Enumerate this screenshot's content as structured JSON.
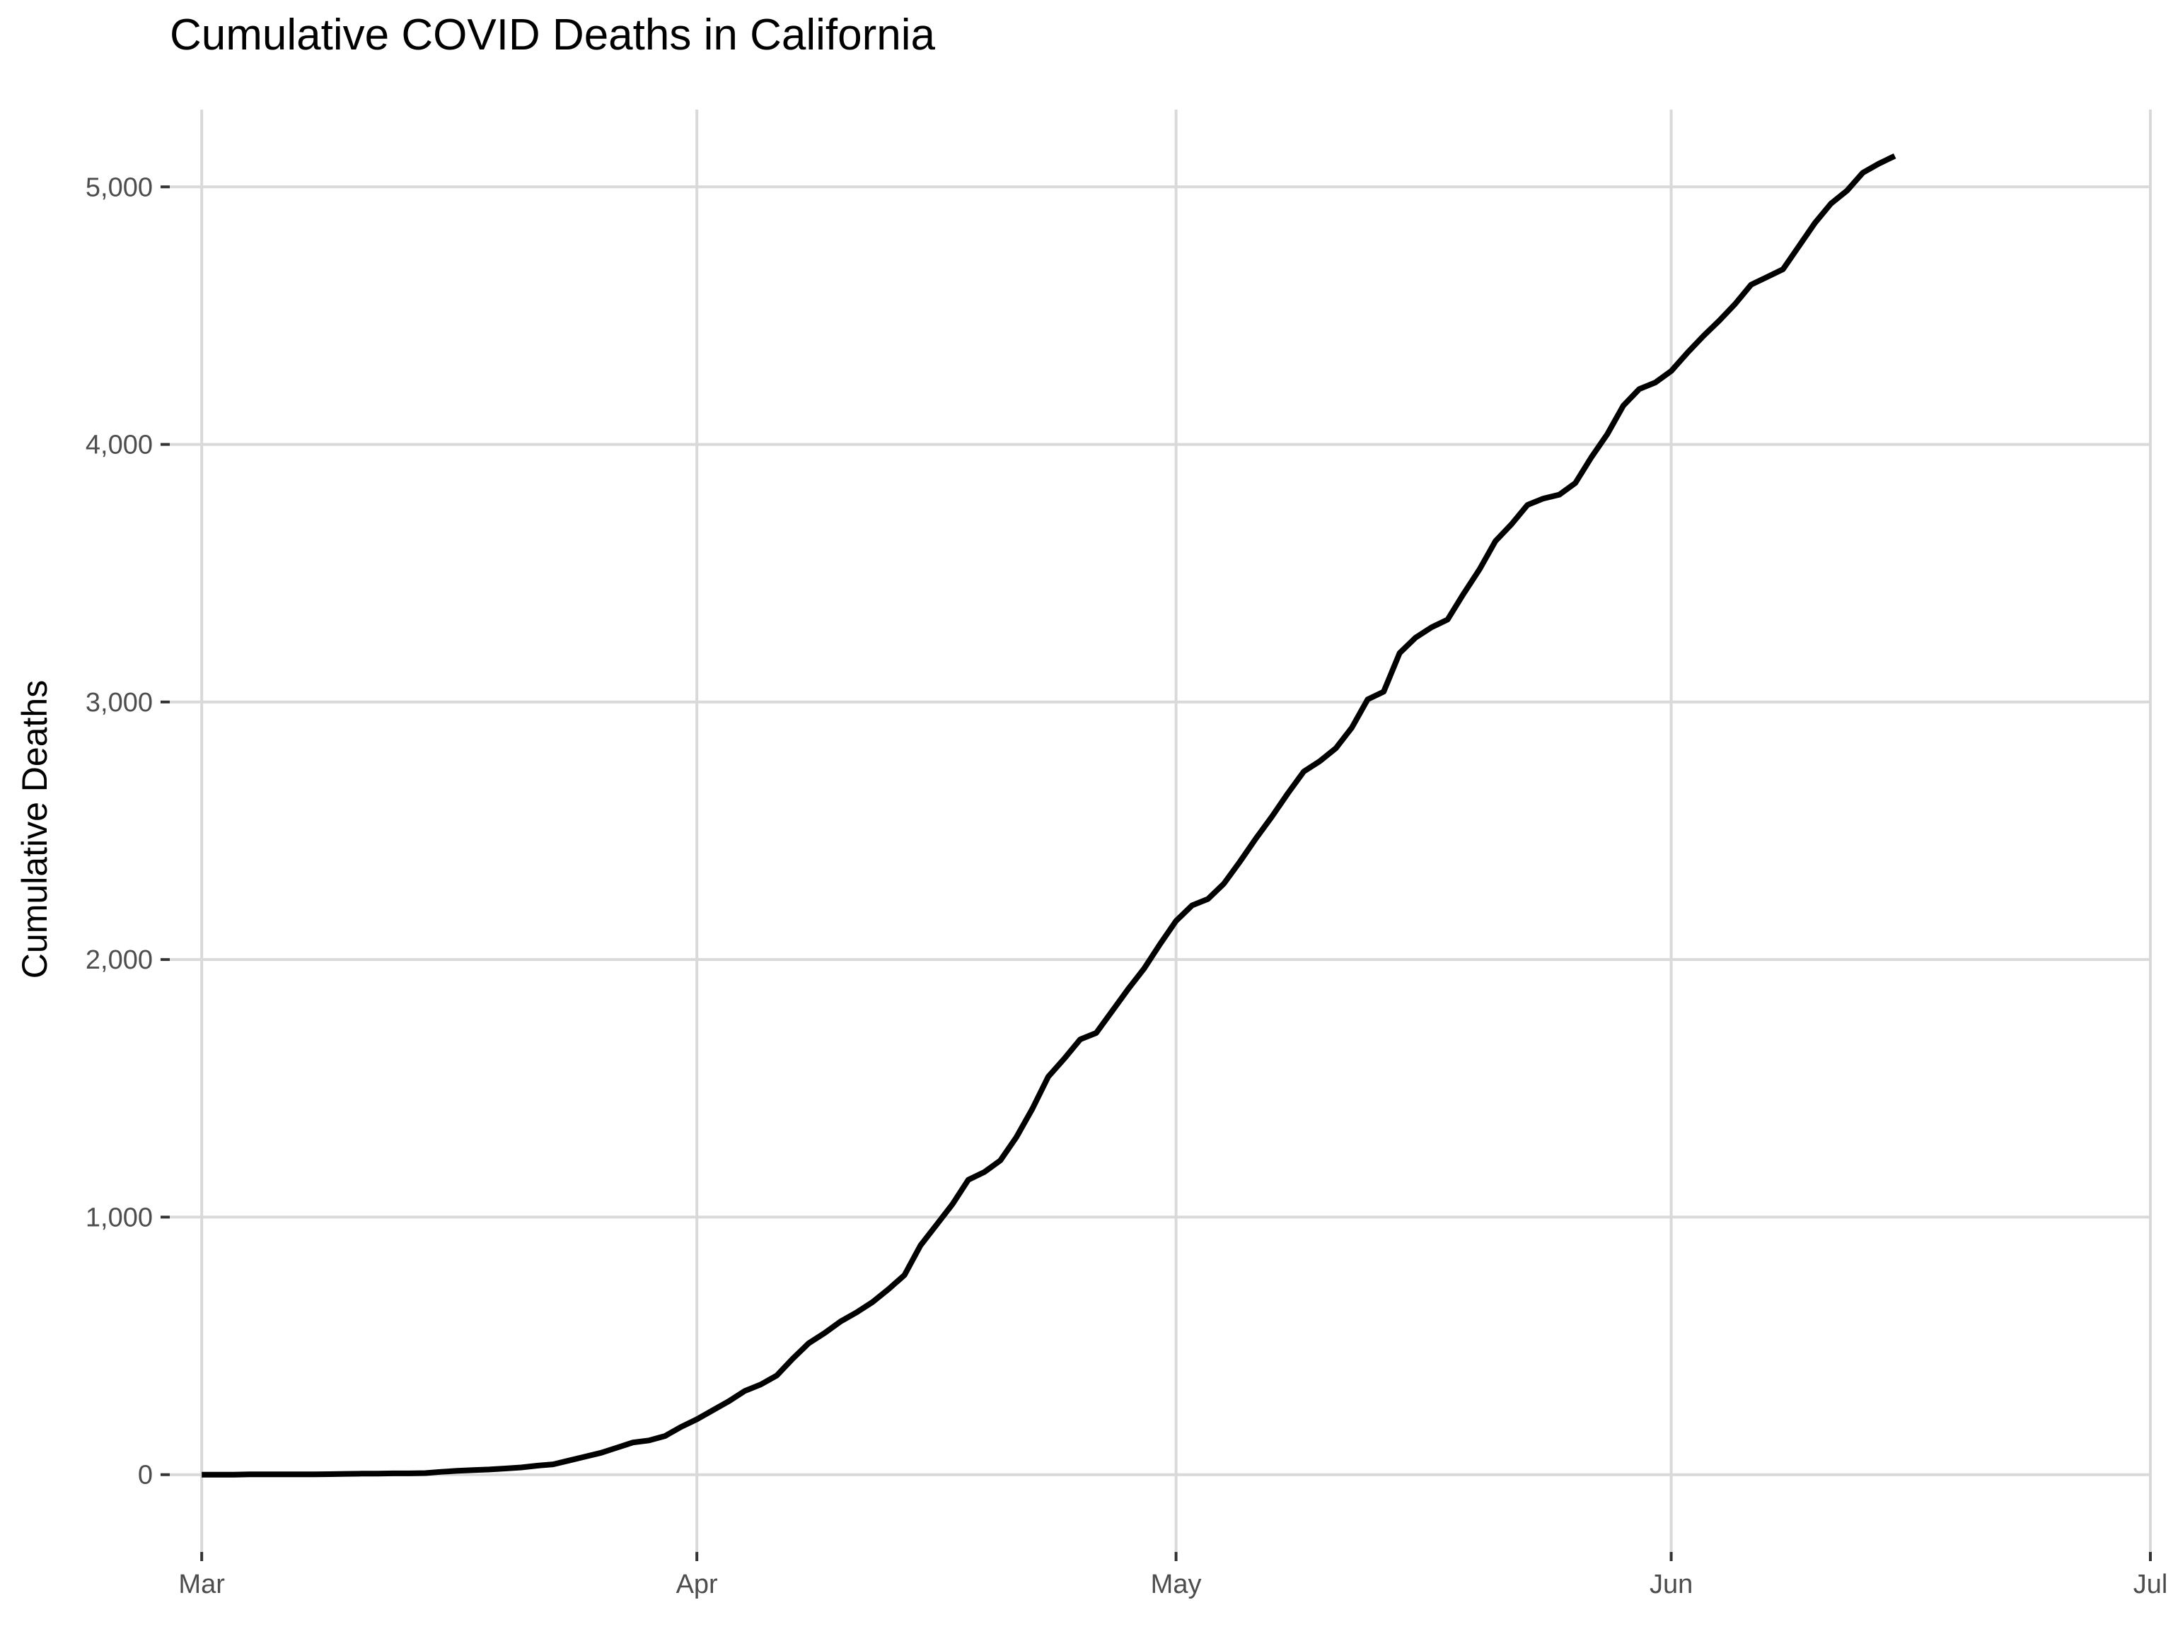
{
  "chart_data": {
    "type": "line",
    "title": "Cumulative COVID Deaths in California",
    "xlabel": "",
    "ylabel": "Cumulative Deaths",
    "x_axis_type": "date",
    "xlim": [
      "2020-02-28",
      "2020-07-01"
    ],
    "ylim": [
      -300,
      5300
    ],
    "x_ticks": [
      {
        "date": "2020-03-01",
        "label": "Mar"
      },
      {
        "date": "2020-04-01",
        "label": "Apr"
      },
      {
        "date": "2020-05-01",
        "label": "May"
      },
      {
        "date": "2020-06-01",
        "label": "Jun"
      },
      {
        "date": "2020-07-01",
        "label": "Jul"
      }
    ],
    "y_ticks": [
      {
        "value": 0,
        "label": "0"
      },
      {
        "value": 1000,
        "label": "1,000"
      },
      {
        "value": 2000,
        "label": "2,000"
      },
      {
        "value": 3000,
        "label": "3,000"
      },
      {
        "value": 4000,
        "label": "4,000"
      },
      {
        "value": 5000,
        "label": "5,000"
      }
    ],
    "grid": "horizontal major and vertical major gridlines",
    "legend": "none",
    "series": [
      {
        "color": "#000000",
        "points": [
          [
            "2020-03-01",
            0
          ],
          [
            "2020-03-02",
            0
          ],
          [
            "2020-03-03",
            0
          ],
          [
            "2020-03-04",
            1
          ],
          [
            "2020-03-05",
            1
          ],
          [
            "2020-03-06",
            1
          ],
          [
            "2020-03-07",
            1
          ],
          [
            "2020-03-08",
            1
          ],
          [
            "2020-03-09",
            2
          ],
          [
            "2020-03-10",
            3
          ],
          [
            "2020-03-11",
            4
          ],
          [
            "2020-03-12",
            4
          ],
          [
            "2020-03-13",
            5
          ],
          [
            "2020-03-14",
            5
          ],
          [
            "2020-03-15",
            6
          ],
          [
            "2020-03-16",
            11
          ],
          [
            "2020-03-17",
            15
          ],
          [
            "2020-03-18",
            18
          ],
          [
            "2020-03-19",
            20
          ],
          [
            "2020-03-20",
            24
          ],
          [
            "2020-03-21",
            28
          ],
          [
            "2020-03-22",
            35
          ],
          [
            "2020-03-23",
            40
          ],
          [
            "2020-03-24",
            55
          ],
          [
            "2020-03-25",
            70
          ],
          [
            "2020-03-26",
            85
          ],
          [
            "2020-03-27",
            105
          ],
          [
            "2020-03-28",
            125
          ],
          [
            "2020-03-29",
            133
          ],
          [
            "2020-03-30",
            150
          ],
          [
            "2020-03-31",
            185
          ],
          [
            "2020-04-01",
            215
          ],
          [
            "2020-04-02",
            250
          ],
          [
            "2020-04-03",
            285
          ],
          [
            "2020-04-04",
            325
          ],
          [
            "2020-04-05",
            350
          ],
          [
            "2020-04-06",
            385
          ],
          [
            "2020-04-07",
            450
          ],
          [
            "2020-04-08",
            510
          ],
          [
            "2020-04-09",
            550
          ],
          [
            "2020-04-10",
            595
          ],
          [
            "2020-04-11",
            630
          ],
          [
            "2020-04-12",
            670
          ],
          [
            "2020-04-13",
            720
          ],
          [
            "2020-04-14",
            775
          ],
          [
            "2020-04-15",
            890
          ],
          [
            "2020-04-16",
            970
          ],
          [
            "2020-04-17",
            1050
          ],
          [
            "2020-04-18",
            1145
          ],
          [
            "2020-04-19",
            1175
          ],
          [
            "2020-04-20",
            1220
          ],
          [
            "2020-04-21",
            1310
          ],
          [
            "2020-04-22",
            1420
          ],
          [
            "2020-04-23",
            1545
          ],
          [
            "2020-04-24",
            1615
          ],
          [
            "2020-04-25",
            1690
          ],
          [
            "2020-04-26",
            1715
          ],
          [
            "2020-04-27",
            1800
          ],
          [
            "2020-04-28",
            1885
          ],
          [
            "2020-04-29",
            1965
          ],
          [
            "2020-04-30",
            2060
          ],
          [
            "2020-05-01",
            2150
          ],
          [
            "2020-05-02",
            2210
          ],
          [
            "2020-05-03",
            2235
          ],
          [
            "2020-05-04",
            2295
          ],
          [
            "2020-05-05",
            2380
          ],
          [
            "2020-05-06",
            2470
          ],
          [
            "2020-05-07",
            2555
          ],
          [
            "2020-05-08",
            2645
          ],
          [
            "2020-05-09",
            2730
          ],
          [
            "2020-05-10",
            2770
          ],
          [
            "2020-05-11",
            2820
          ],
          [
            "2020-05-12",
            2900
          ],
          [
            "2020-05-13",
            3010
          ],
          [
            "2020-05-14",
            3040
          ],
          [
            "2020-05-15",
            3190
          ],
          [
            "2020-05-16",
            3250
          ],
          [
            "2020-05-17",
            3290
          ],
          [
            "2020-05-18",
            3320
          ],
          [
            "2020-05-19",
            3420
          ],
          [
            "2020-05-20",
            3515
          ],
          [
            "2020-05-21",
            3625
          ],
          [
            "2020-05-22",
            3690
          ],
          [
            "2020-05-23",
            3765
          ],
          [
            "2020-05-24",
            3790
          ],
          [
            "2020-05-25",
            3805
          ],
          [
            "2020-05-26",
            3850
          ],
          [
            "2020-05-27",
            3950
          ],
          [
            "2020-05-28",
            4040
          ],
          [
            "2020-05-29",
            4150
          ],
          [
            "2020-05-30",
            4215
          ],
          [
            "2020-05-31",
            4240
          ],
          [
            "2020-06-01",
            4285
          ],
          [
            "2020-06-02",
            4355
          ],
          [
            "2020-06-03",
            4420
          ],
          [
            "2020-06-04",
            4480
          ],
          [
            "2020-06-05",
            4545
          ],
          [
            "2020-06-06",
            4620
          ],
          [
            "2020-06-07",
            4650
          ],
          [
            "2020-06-08",
            4680
          ],
          [
            "2020-06-09",
            4770
          ],
          [
            "2020-06-10",
            4860
          ],
          [
            "2020-06-11",
            4935
          ],
          [
            "2020-06-12",
            4985
          ],
          [
            "2020-06-13",
            5055
          ],
          [
            "2020-06-14",
            5090
          ],
          [
            "2020-06-15",
            5120
          ]
        ]
      }
    ]
  }
}
